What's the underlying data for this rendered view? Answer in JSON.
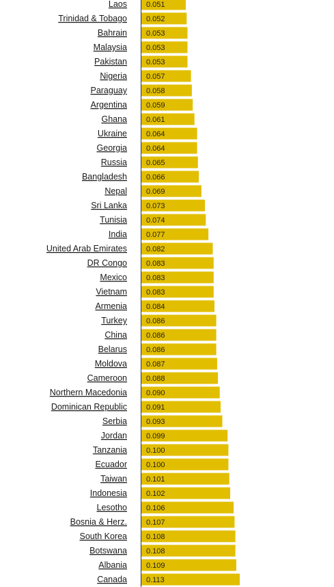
{
  "colors": {
    "bar": "#E2BE00",
    "axis": "#333333",
    "label": "#1a1a1a"
  },
  "chart_data": {
    "type": "bar",
    "orientation": "horizontal",
    "title": "",
    "xlabel": "",
    "ylabel": "",
    "xlim": [
      0,
      0.113
    ],
    "grid": false,
    "legend": "none",
    "categories": [
      "Laos",
      "Trinidad & Tobago",
      "Bahrain",
      "Malaysia",
      "Pakistan",
      "Nigeria",
      "Paraguay",
      "Argentina",
      "Ghana",
      "Ukraine",
      "Georgia",
      "Russia",
      "Bangladesh",
      "Nepal",
      "Sri Lanka",
      "Tunisia",
      "India",
      "United Arab Emirates",
      "DR Congo",
      "Mexico",
      "Vietnam",
      "Armenia",
      "Turkey",
      "China",
      "Belarus",
      "Moldova",
      "Cameroon",
      "Northern Macedonia",
      "Dominican Republic",
      "Serbia",
      "Jordan",
      "Tanzania",
      "Ecuador",
      "Taiwan",
      "Indonesia",
      "Lesotho",
      "Bosnia & Herz.",
      "South Korea",
      "Botswana",
      "Albania",
      "Canada"
    ],
    "values": [
      0.051,
      0.052,
      0.053,
      0.053,
      0.053,
      0.057,
      0.058,
      0.059,
      0.061,
      0.064,
      0.064,
      0.065,
      0.066,
      0.069,
      0.073,
      0.074,
      0.077,
      0.082,
      0.083,
      0.083,
      0.083,
      0.084,
      0.086,
      0.086,
      0.086,
      0.087,
      0.088,
      0.09,
      0.091,
      0.093,
      0.099,
      0.1,
      0.1,
      0.101,
      0.102,
      0.106,
      0.107,
      0.108,
      0.108,
      0.109,
      0.113
    ],
    "value_labels": [
      "0.051",
      "0.052",
      "0.053",
      "0.053",
      "0.053",
      "0.057",
      "0.058",
      "0.059",
      "0.061",
      "0.064",
      "0.064",
      "0.065",
      "0.066",
      "0.069",
      "0.073",
      "0.074",
      "0.077",
      "0.082",
      "0.083",
      "0.083",
      "0.083",
      "0.084",
      "0.086",
      "0.086",
      "0.086",
      "0.087",
      "0.088",
      "0.090",
      "0.091",
      "0.093",
      "0.099",
      "0.100",
      "0.100",
      "0.101",
      "0.102",
      "0.106",
      "0.107",
      "0.108",
      "0.108",
      "0.109",
      "0.113"
    ]
  }
}
